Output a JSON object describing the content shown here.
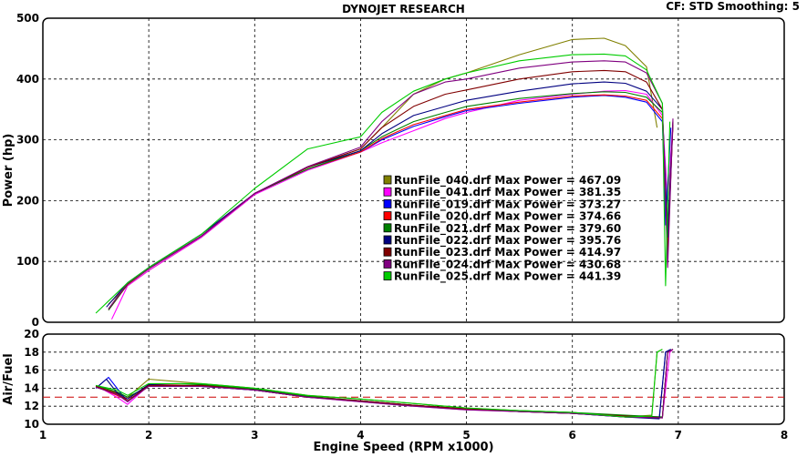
{
  "header": {
    "title": "DYNOJET RESEARCH",
    "cf_info": "CF: STD  Smoothing: 5"
  },
  "colors": {
    "reference_line": "#cc0000",
    "grid": "#000000",
    "plot_border": "#000000",
    "panel_background": "#ffffff"
  },
  "chart_data": [
    {
      "type": "line",
      "title": "DYNOJET RESEARCH",
      "xlabel": "",
      "ylabel": "Power (hp)",
      "xlim": [
        1,
        8
      ],
      "ylim": [
        0,
        500
      ],
      "x_ticks": [
        1,
        2,
        3,
        4,
        5,
        6,
        7,
        8
      ],
      "y_ticks": [
        0,
        100,
        200,
        300,
        400,
        500
      ],
      "grid": true,
      "legend_position": "center",
      "series": [
        {
          "name": "RunFile_040.drf Max Power = 467.09",
          "color": "#808000",
          "x": [
            1.62,
            1.8,
            2.0,
            2.5,
            3.0,
            3.5,
            4.0,
            4.2,
            4.5,
            4.8,
            5.0,
            5.5,
            6.0,
            6.3,
            6.5,
            6.7,
            6.8
          ],
          "y": [
            30,
            60,
            85,
            140,
            210,
            255,
            285,
            320,
            375,
            400,
            410,
            440,
            465,
            467,
            455,
            420,
            320
          ]
        },
        {
          "name": "RunFile_041.drf Max Power = 381.35",
          "color": "#ff00ff",
          "x": [
            1.65,
            1.8,
            2.0,
            2.5,
            3.0,
            3.5,
            4.0,
            4.2,
            4.5,
            4.8,
            5.0,
            5.5,
            6.0,
            6.3,
            6.5,
            6.7,
            6.85,
            6.9,
            6.95
          ],
          "y": [
            5,
            60,
            85,
            140,
            210,
            250,
            280,
            295,
            315,
            335,
            345,
            365,
            375,
            380,
            381,
            375,
            340,
            200,
            330
          ]
        },
        {
          "name": "RunFile_019.drf Max Power = 373.27",
          "color": "#0000ff",
          "x": [
            1.62,
            1.8,
            2.0,
            2.5,
            3.0,
            3.5,
            4.0,
            4.2,
            4.5,
            4.8,
            5.0,
            5.5,
            6.0,
            6.3,
            6.5,
            6.7,
            6.85,
            6.88,
            6.93
          ],
          "y": [
            20,
            62,
            88,
            142,
            212,
            252,
            280,
            300,
            322,
            338,
            348,
            360,
            370,
            373,
            370,
            362,
            330,
            160,
            320
          ]
        },
        {
          "name": "RunFile_020.drf Max Power = 374.66",
          "color": "#ff0000",
          "x": [
            1.62,
            1.8,
            2.0,
            2.5,
            3.0,
            3.5,
            4.0,
            4.2,
            4.5,
            4.8,
            5.0,
            5.5,
            6.0,
            6.3,
            6.5,
            6.7,
            6.85,
            6.9,
            6.95
          ],
          "y": [
            20,
            62,
            88,
            142,
            212,
            252,
            280,
            302,
            325,
            340,
            350,
            362,
            372,
            374,
            372,
            365,
            335,
            120,
            325
          ]
        },
        {
          "name": "RunFile_021.drf Max Power = 379.60",
          "color": "#008000",
          "x": [
            1.62,
            1.8,
            2.0,
            2.5,
            3.0,
            3.5,
            4.0,
            4.2,
            4.5,
            4.8,
            5.0,
            5.5,
            6.0,
            6.3,
            6.5,
            6.7,
            6.85,
            6.9,
            6.95
          ],
          "y": [
            20,
            63,
            88,
            142,
            212,
            252,
            282,
            305,
            330,
            345,
            355,
            368,
            376,
            379,
            378,
            370,
            345,
            150,
            328
          ]
        },
        {
          "name": "RunFile_022.drf Max Power = 395.76",
          "color": "#000080",
          "x": [
            1.6,
            1.8,
            2.0,
            2.5,
            3.0,
            3.5,
            4.0,
            4.2,
            4.5,
            4.8,
            5.0,
            5.5,
            6.0,
            6.3,
            6.5,
            6.7,
            6.85,
            6.9,
            6.95
          ],
          "y": [
            25,
            65,
            90,
            145,
            212,
            255,
            282,
            310,
            340,
            355,
            365,
            380,
            392,
            395,
            393,
            380,
            350,
            140,
            330
          ]
        },
        {
          "name": "RunFile_023.drf Max Power = 414.97",
          "color": "#800000",
          "x": [
            1.62,
            1.8,
            2.0,
            2.5,
            3.0,
            3.5,
            4.0,
            4.2,
            4.5,
            4.8,
            5.0,
            5.5,
            6.0,
            6.3,
            6.5,
            6.7,
            6.85,
            6.9,
            6.95
          ],
          "y": [
            22,
            64,
            88,
            142,
            212,
            255,
            285,
            320,
            355,
            375,
            382,
            400,
            412,
            414,
            412,
            395,
            350,
            110,
            330
          ]
        },
        {
          "name": "RunFile_024.drf Max Power = 430.68",
          "color": "#800080",
          "x": [
            1.62,
            1.8,
            2.0,
            2.5,
            3.0,
            3.5,
            4.0,
            4.2,
            4.5,
            4.8,
            5.0,
            5.5,
            6.0,
            6.3,
            6.5,
            6.7,
            6.85,
            6.9,
            6.95
          ],
          "y": [
            22,
            64,
            88,
            142,
            212,
            256,
            288,
            330,
            375,
            395,
            400,
            418,
            428,
            430,
            428,
            410,
            360,
            90,
            335
          ]
        },
        {
          "name": "RunFile_025.drf Max Power = 441.39",
          "color": "#00cc00",
          "x": [
            1.5,
            1.65,
            1.8,
            2.0,
            2.5,
            3.0,
            3.5,
            4.0,
            4.2,
            4.5,
            4.8,
            5.0,
            5.5,
            6.0,
            6.3,
            6.5,
            6.7,
            6.85,
            6.88,
            6.92
          ],
          "y": [
            15,
            40,
            65,
            90,
            145,
            220,
            285,
            305,
            345,
            380,
            400,
            410,
            430,
            440,
            441,
            438,
            415,
            360,
            60,
            330
          ]
        }
      ]
    },
    {
      "type": "line",
      "title": "",
      "xlabel": "Engine Speed (RPM x1000)",
      "ylabel": "Air/Fuel",
      "xlim": [
        1,
        8
      ],
      "ylim": [
        10,
        20
      ],
      "x_ticks": [
        1,
        2,
        3,
        4,
        5,
        6,
        7,
        8
      ],
      "y_ticks": [
        10,
        12,
        14,
        16,
        18,
        20
      ],
      "grid": true,
      "reference_line": {
        "y": 13
      },
      "series": [
        {
          "name": "RunFile_040.drf",
          "color": "#808000",
          "x": [
            1.5,
            1.7,
            1.8,
            2.0,
            2.5,
            3.0,
            3.5,
            4.0,
            4.5,
            5.0,
            5.5,
            6.0,
            6.5,
            6.75,
            6.8,
            6.85
          ],
          "y": [
            14.2,
            13.5,
            13.0,
            15.0,
            14.5,
            14.0,
            13.2,
            12.8,
            12.3,
            11.8,
            11.5,
            11.3,
            10.8,
            11.0,
            18.0,
            18.3
          ]
        },
        {
          "name": "RunFile_041.drf",
          "color": "#ff00ff",
          "x": [
            1.5,
            1.7,
            1.8,
            2.0,
            2.5,
            3.0,
            3.5,
            4.0,
            4.5,
            5.0,
            5.5,
            6.0,
            6.5,
            6.85,
            6.92,
            6.95
          ],
          "y": [
            14.3,
            13.0,
            12.2,
            14.3,
            14.3,
            13.8,
            13.0,
            12.5,
            12.0,
            11.6,
            11.4,
            11.2,
            10.9,
            10.8,
            18.0,
            18.3
          ]
        },
        {
          "name": "RunFile_019.drf",
          "color": "#0000ff",
          "x": [
            1.5,
            1.62,
            1.7,
            1.8,
            2.0,
            2.5,
            3.0,
            3.5,
            4.0,
            4.5,
            5.0,
            5.5,
            6.0,
            6.5,
            6.82,
            6.88,
            6.93
          ],
          "y": [
            14.0,
            15.2,
            14.0,
            12.5,
            14.4,
            14.2,
            13.8,
            13.0,
            12.6,
            12.1,
            11.7,
            11.4,
            11.2,
            10.8,
            10.7,
            18.0,
            18.3
          ]
        },
        {
          "name": "RunFile_020.drf",
          "color": "#ff0000",
          "x": [
            1.5,
            1.7,
            1.8,
            2.0,
            2.5,
            3.0,
            3.5,
            4.0,
            4.5,
            5.0,
            5.5,
            6.0,
            6.5,
            6.85,
            6.9,
            6.95
          ],
          "y": [
            14.2,
            13.2,
            12.8,
            14.4,
            14.3,
            13.9,
            13.1,
            12.6,
            12.1,
            11.7,
            11.4,
            11.2,
            10.9,
            10.8,
            18.0,
            18.3
          ]
        },
        {
          "name": "RunFile_021.drf",
          "color": "#008000",
          "x": [
            1.5,
            1.7,
            1.8,
            2.0,
            2.5,
            3.0,
            3.5,
            4.0,
            4.5,
            5.0,
            5.5,
            6.0,
            6.5,
            6.85,
            6.9,
            6.95
          ],
          "y": [
            14.3,
            13.6,
            13.0,
            14.2,
            14.4,
            13.9,
            13.1,
            12.6,
            12.1,
            11.7,
            11.5,
            11.3,
            11.0,
            10.8,
            18.0,
            18.3
          ]
        },
        {
          "name": "RunFile_022.drf",
          "color": "#000080",
          "x": [
            1.5,
            1.6,
            1.7,
            1.8,
            2.0,
            2.5,
            3.0,
            3.5,
            4.0,
            4.5,
            5.0,
            5.5,
            6.0,
            6.5,
            6.82,
            6.88,
            6.93
          ],
          "y": [
            14.0,
            15.0,
            13.5,
            12.8,
            14.4,
            14.2,
            13.8,
            13.0,
            12.6,
            12.1,
            11.7,
            11.4,
            11.2,
            10.8,
            10.6,
            18.0,
            18.3
          ]
        },
        {
          "name": "RunFile_023.drf",
          "color": "#800000",
          "x": [
            1.5,
            1.7,
            1.8,
            2.0,
            2.5,
            3.0,
            3.5,
            4.0,
            4.5,
            5.0,
            5.5,
            6.0,
            6.5,
            6.85,
            6.9,
            6.95
          ],
          "y": [
            14.2,
            13.4,
            12.6,
            14.3,
            14.3,
            13.8,
            13.0,
            12.6,
            12.1,
            11.7,
            11.4,
            11.2,
            10.9,
            10.7,
            18.0,
            18.3
          ]
        },
        {
          "name": "RunFile_024.drf",
          "color": "#800080",
          "x": [
            1.5,
            1.7,
            1.8,
            2.0,
            2.5,
            3.0,
            3.5,
            4.0,
            4.5,
            5.0,
            5.5,
            6.0,
            6.5,
            6.85,
            6.9,
            6.95
          ],
          "y": [
            14.1,
            13.3,
            12.5,
            14.2,
            14.2,
            13.8,
            13.0,
            12.5,
            12.0,
            11.6,
            11.4,
            11.2,
            10.8,
            10.7,
            18.0,
            18.3
          ]
        },
        {
          "name": "RunFile_025.drf",
          "color": "#00cc00",
          "x": [
            1.5,
            1.7,
            1.8,
            2.0,
            2.5,
            3.0,
            3.5,
            4.0,
            4.5,
            5.0,
            5.5,
            6.0,
            6.5,
            6.75,
            6.8,
            6.85
          ],
          "y": [
            14.3,
            13.8,
            13.2,
            14.5,
            14.5,
            14.0,
            13.2,
            12.8,
            12.3,
            11.8,
            11.5,
            11.3,
            10.8,
            10.9,
            18.0,
            18.3
          ]
        }
      ]
    }
  ]
}
